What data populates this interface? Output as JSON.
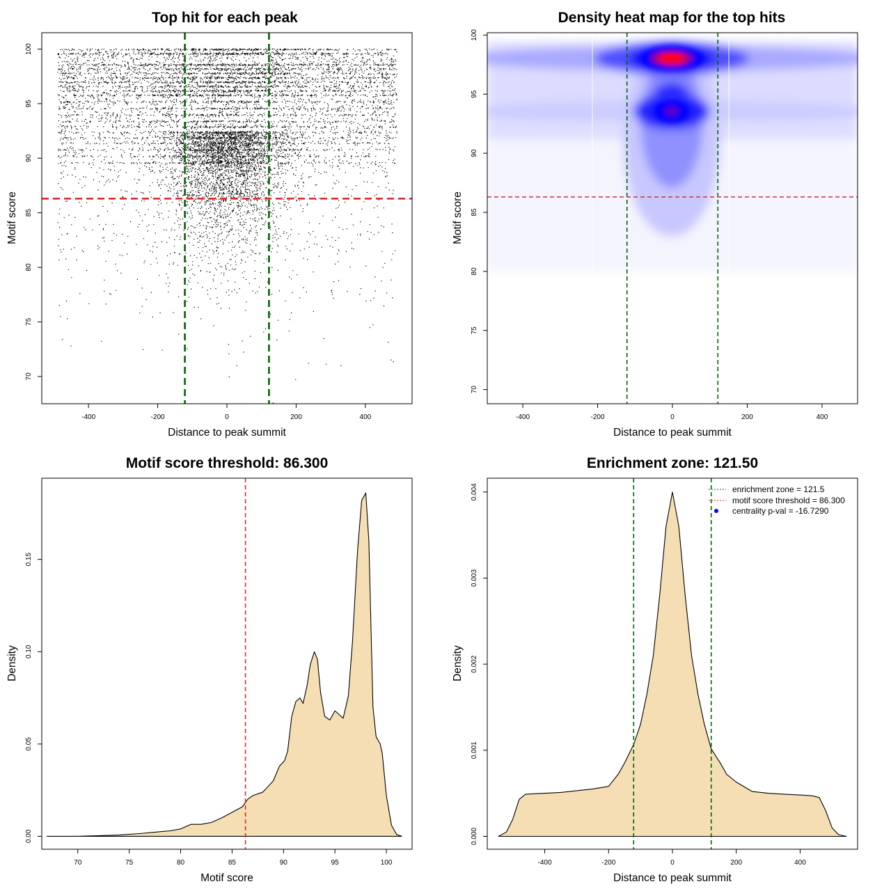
{
  "chart_data": [
    {
      "id": "scatter",
      "type": "scatter",
      "title": "Top hit for each peak",
      "xlabel": "Distance to peak summit",
      "ylabel": "Motif score",
      "xlim": [
        -535,
        535
      ],
      "ylim": [
        67.5,
        101.5
      ],
      "xticks": [
        -400,
        -200,
        0,
        200,
        400
      ],
      "yticks": [
        70,
        75,
        80,
        85,
        90,
        95,
        100
      ],
      "enrichment_zone": [
        -121.5,
        121.5
      ],
      "score_threshold": 86.3,
      "point_distribution": {
        "x_range": [
          -490,
          490
        ],
        "dense_rows": [
          100,
          99.6,
          98.6,
          98.2,
          97.8,
          97.4,
          97,
          96.6,
          96.2,
          95.8,
          95.2,
          94.6,
          94,
          93.4,
          92.9,
          92.4,
          91.9,
          91.4,
          90.8,
          90.2,
          89.6
        ],
        "n_points_approx": 16000
      }
    },
    {
      "id": "heatmap",
      "type": "heatmap",
      "title": "Density heat map for the top hits",
      "xlabel": "Distance to peak summit",
      "ylabel": "Motif score",
      "xlim": [
        -495,
        495
      ],
      "ylim": [
        68.8,
        100.2
      ],
      "xticks": [
        -400,
        -200,
        0,
        200,
        400
      ],
      "yticks": [
        70,
        75,
        80,
        85,
        90,
        95,
        100
      ],
      "enrichment_zone": [
        -121.5,
        121.5
      ],
      "score_threshold": 86.3,
      "density_peaks": [
        {
          "x": 0,
          "y": 97.8,
          "level": "max"
        },
        {
          "x": 0,
          "y": 93.5,
          "level": "high"
        },
        {
          "x": 0,
          "y": 95.0,
          "level": "high"
        }
      ],
      "colorscale": [
        "#ffffff",
        "#0000ff",
        "#ff0000"
      ]
    },
    {
      "id": "score-density",
      "type": "area",
      "title": "Motif score threshold: 86.300",
      "xlabel": "Motif score",
      "ylabel": "Density",
      "xlim": [
        66.5,
        102.5
      ],
      "ylim": [
        -0.007,
        0.194
      ],
      "xticks": [
        70,
        75,
        80,
        85,
        90,
        95,
        100
      ],
      "yticks": [
        0.0,
        0.05,
        0.1,
        0.15
      ],
      "ytick_labels": [
        "0.00",
        "0.05",
        "0.10",
        "0.15"
      ],
      "threshold": 86.3,
      "fill_color": "#f5deb3",
      "x": [
        67,
        70,
        72,
        74,
        76,
        78,
        79,
        80,
        81,
        82,
        83,
        84,
        85,
        86,
        86.5,
        87,
        88,
        89,
        89.6,
        90.1,
        90.4,
        90.8,
        91.2,
        91.6,
        91.9,
        92.3,
        92.6,
        93,
        93.3,
        93.6,
        94,
        94.5,
        95,
        95.4,
        95.8,
        96.3,
        96.7,
        97.2,
        97.6,
        98,
        98.3,
        98.7,
        99,
        99.4,
        99.6,
        100,
        100.5,
        101,
        101.5
      ],
      "y": [
        0.0,
        0.0,
        0.0003,
        0.0007,
        0.0015,
        0.0025,
        0.003,
        0.004,
        0.0065,
        0.0065,
        0.0075,
        0.01,
        0.013,
        0.016,
        0.02,
        0.022,
        0.024,
        0.03,
        0.038,
        0.041,
        0.046,
        0.065,
        0.073,
        0.075,
        0.072,
        0.082,
        0.093,
        0.1,
        0.096,
        0.078,
        0.065,
        0.063,
        0.068,
        0.066,
        0.064,
        0.076,
        0.105,
        0.155,
        0.182,
        0.186,
        0.16,
        0.07,
        0.054,
        0.05,
        0.045,
        0.022,
        0.006,
        0.001,
        0.0
      ]
    },
    {
      "id": "distance-density",
      "type": "area",
      "title": "Enrichment zone: 121.50",
      "xlabel": "Distance to peak summit",
      "ylabel": "Density",
      "xlim": [
        -580,
        580
      ],
      "ylim": [
        -0.00015,
        0.00416
      ],
      "xticks": [
        -400,
        -200,
        0,
        200,
        400
      ],
      "yticks": [
        0.0,
        0.001,
        0.002,
        0.003,
        0.004
      ],
      "ytick_labels": [
        "0.000",
        "0.001",
        "0.002",
        "0.003",
        "0.004"
      ],
      "enrichment_zone": [
        -121.5,
        121.5
      ],
      "fill_color": "#f5deb3",
      "x": [
        -545,
        -520,
        -500,
        -480,
        -460,
        -400,
        -350,
        -300,
        -250,
        -200,
        -170,
        -150,
        -121,
        -100,
        -80,
        -60,
        -40,
        -20,
        0,
        20,
        40,
        60,
        80,
        100,
        121,
        150,
        170,
        200,
        250,
        300,
        350,
        400,
        440,
        460,
        480,
        500,
        520,
        545
      ],
      "y": [
        0.0,
        5e-05,
        0.0002,
        0.00043,
        0.00049,
        0.0005,
        0.00051,
        0.00053,
        0.00055,
        0.00058,
        0.00072,
        0.00085,
        0.00107,
        0.0013,
        0.00165,
        0.0021,
        0.0028,
        0.0036,
        0.004,
        0.0036,
        0.0028,
        0.0021,
        0.00165,
        0.0013,
        0.00102,
        0.00085,
        0.00072,
        0.00063,
        0.00052,
        0.0005,
        0.00049,
        0.00048,
        0.00047,
        0.00045,
        0.0003,
        0.0001,
        2e-05,
        0.0
      ],
      "legend": {
        "position": "top-right",
        "entries": [
          {
            "label": "enrichment zone = 121.5",
            "color": "#006400",
            "style": "dotted-line"
          },
          {
            "label": "motif score threshold = 86.300",
            "color": "#cd3333",
            "style": "dotted-line"
          },
          {
            "label": "centrality p-val = -16.7290",
            "color": "#0000ff",
            "style": "point"
          }
        ]
      }
    }
  ],
  "colors": {
    "zone_line": "#006400",
    "threshold_line": "#dd2a2a",
    "heat_threshold": "#c8424a",
    "fill": "#f5deb3"
  }
}
